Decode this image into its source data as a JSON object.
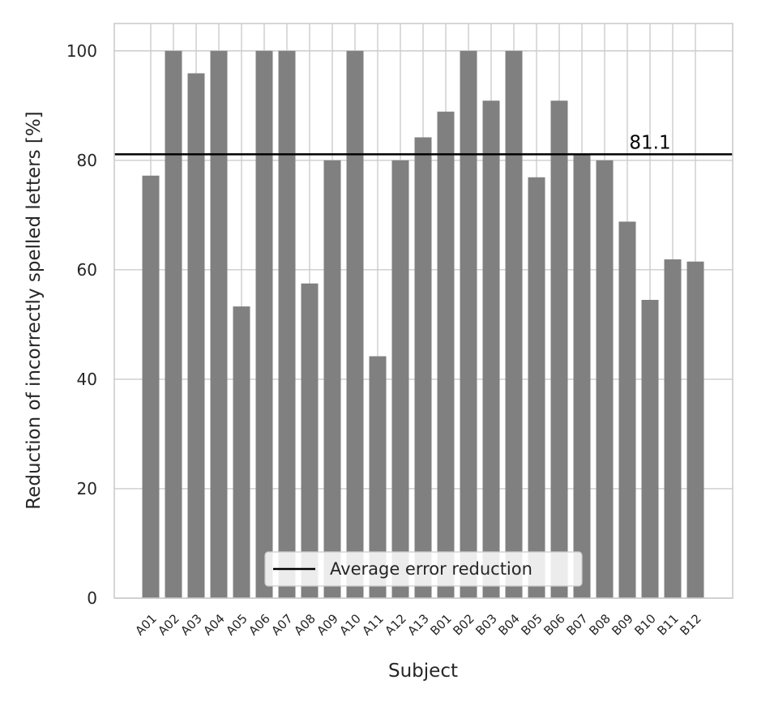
{
  "chart_data": {
    "type": "bar",
    "title": "",
    "xlabel": "Subject",
    "ylabel": "Reduction of incorrectly spelled letters [%]",
    "ylim": [
      0,
      105
    ],
    "yticks": [
      0,
      20,
      40,
      60,
      80,
      100
    ],
    "grid": true,
    "categories": [
      "A01",
      "A02",
      "A03",
      "A04",
      "A05",
      "A06",
      "A07",
      "A08",
      "A09",
      "A10",
      "A11",
      "A12",
      "A13",
      "B01",
      "B02",
      "B03",
      "B04",
      "B05",
      "B06",
      "B07",
      "B08",
      "B09",
      "B10",
      "B11",
      "B12"
    ],
    "values": [
      77.2,
      100,
      95.9,
      100,
      53.3,
      100,
      100,
      57.5,
      80,
      100,
      44.2,
      80,
      84.2,
      88.9,
      100,
      90.9,
      100,
      76.9,
      90.9,
      81.1,
      80,
      68.8,
      54.5,
      61.9,
      61.5
    ],
    "bar_color": "#808080",
    "average": {
      "value": 81.1,
      "label": "81.1",
      "color": "#000000"
    },
    "legend": {
      "position": "bottom-center",
      "entries": [
        "Average error reduction"
      ]
    }
  }
}
